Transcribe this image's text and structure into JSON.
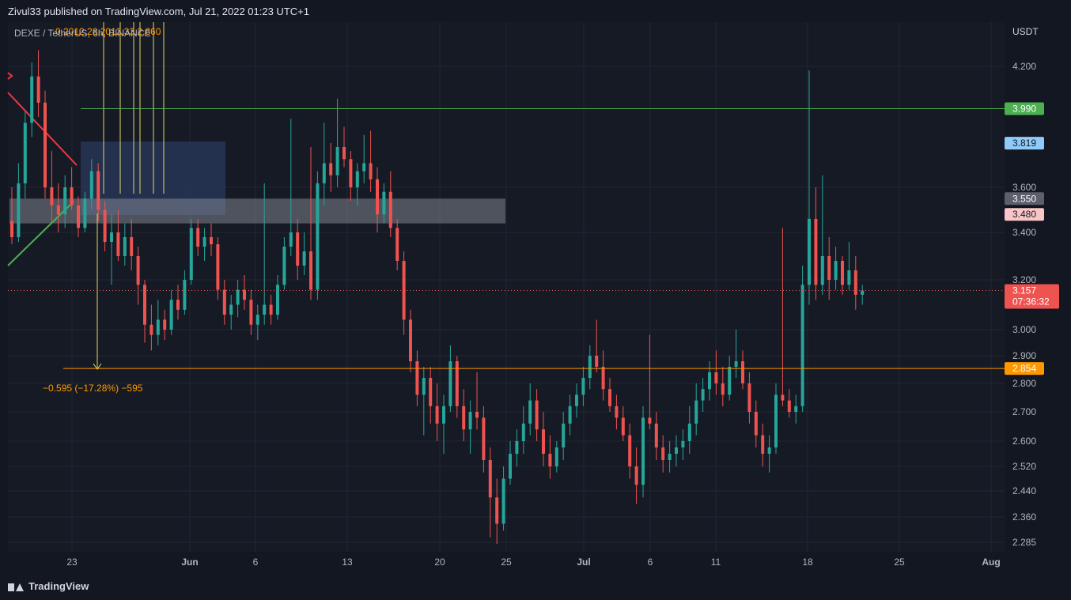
{
  "header": {
    "published": "Zivul33 published on TradingView.com, Jul 21, 2022 01:23 UTC+1"
  },
  "footer": {
    "brand": "TradingView"
  },
  "colors": {
    "up": "#26a69a",
    "down": "#ef5350",
    "grid": "#232733",
    "axis_text": "#b2b5be",
    "bg": "#131722"
  },
  "chart_data": {
    "type": "candlestick",
    "symbol": "DEXE / TetherUS, 6h, BINANCE",
    "unit": "USDT",
    "y_ticks": [
      "4.200",
      "3.600",
      "3.400",
      "3.200",
      "3.000",
      "2.900",
      "2.800",
      "2.700",
      "2.600",
      "2.520",
      "2.440",
      "2.360",
      "2.285"
    ],
    "x_ticks": [
      "23",
      "Jun",
      "6",
      "13",
      "20",
      "25",
      "Jul",
      "6",
      "11",
      "18",
      "25",
      "Aug"
    ],
    "price_levels": [
      {
        "label": "3.990",
        "value": 3.99,
        "color": "#4caf50",
        "line": true
      },
      {
        "label": "3.819",
        "value": 3.819,
        "color": "#90caf9",
        "line": false
      },
      {
        "label": "3.550",
        "value": 3.55,
        "color": "#5d606b",
        "line": false
      },
      {
        "label": "3.480",
        "value": 3.48,
        "color": "#f8c6c6",
        "line": false
      },
      {
        "label": "2.854",
        "value": 2.854,
        "color": "#ff9800",
        "line": true
      }
    ],
    "last_price": {
      "label": "3.157",
      "countdown": "07:36:32",
      "value": 3.157,
      "color": "#ef5350"
    },
    "annotations": {
      "measure_text": "−0.595 (−17.28%) −595",
      "fib_text": "0.2012.28.2012.33.2.660"
    },
    "candles": [
      [
        3.45,
        3.6,
        3.35,
        3.38
      ],
      [
        3.38,
        3.72,
        3.36,
        3.62
      ],
      [
        3.62,
        3.98,
        3.55,
        3.92
      ],
      [
        3.92,
        4.22,
        3.85,
        4.15
      ],
      [
        4.15,
        4.28,
        3.95,
        4.02
      ],
      [
        4.02,
        4.08,
        3.55,
        3.6
      ],
      [
        3.6,
        3.78,
        3.45,
        3.52
      ],
      [
        3.52,
        3.62,
        3.4,
        3.48
      ],
      [
        3.48,
        3.66,
        3.42,
        3.6
      ],
      [
        3.6,
        3.7,
        3.5,
        3.52
      ],
      [
        3.52,
        3.56,
        3.38,
        3.42
      ],
      [
        3.42,
        3.58,
        3.4,
        3.55
      ],
      [
        3.55,
        3.74,
        3.5,
        3.68
      ],
      [
        3.68,
        3.72,
        3.45,
        3.5
      ],
      [
        3.5,
        3.54,
        3.32,
        3.36
      ],
      [
        3.36,
        3.48,
        3.18,
        3.4
      ],
      [
        3.4,
        3.5,
        3.28,
        3.3
      ],
      [
        3.3,
        3.44,
        3.26,
        3.38
      ],
      [
        3.38,
        3.46,
        3.24,
        3.3
      ],
      [
        3.3,
        3.34,
        3.1,
        3.18
      ],
      [
        3.18,
        3.2,
        2.95,
        3.02
      ],
      [
        3.02,
        3.1,
        2.92,
        2.98
      ],
      [
        2.98,
        3.12,
        2.94,
        3.04
      ],
      [
        3.04,
        3.08,
        2.96,
        3.0
      ],
      [
        3.0,
        3.16,
        2.98,
        3.12
      ],
      [
        3.12,
        3.18,
        3.04,
        3.08
      ],
      [
        3.08,
        3.24,
        3.06,
        3.2
      ],
      [
        3.2,
        3.46,
        3.18,
        3.42
      ],
      [
        3.42,
        3.46,
        3.3,
        3.34
      ],
      [
        3.34,
        3.42,
        3.28,
        3.38
      ],
      [
        3.38,
        3.44,
        3.3,
        3.35
      ],
      [
        3.35,
        3.38,
        3.12,
        3.16
      ],
      [
        3.16,
        3.2,
        3.02,
        3.06
      ],
      [
        3.06,
        3.14,
        3.0,
        3.1
      ],
      [
        3.1,
        3.2,
        3.05,
        3.16
      ],
      [
        3.16,
        3.22,
        3.08,
        3.12
      ],
      [
        3.12,
        3.16,
        2.98,
        3.02
      ],
      [
        3.02,
        3.1,
        2.96,
        3.06
      ],
      [
        3.06,
        3.62,
        3.02,
        3.1
      ],
      [
        3.1,
        3.14,
        3.02,
        3.06
      ],
      [
        3.06,
        3.22,
        3.04,
        3.18
      ],
      [
        3.18,
        3.38,
        3.16,
        3.34
      ],
      [
        3.34,
        3.94,
        3.3,
        3.4
      ],
      [
        3.4,
        3.46,
        3.2,
        3.26
      ],
      [
        3.26,
        3.4,
        3.22,
        3.32
      ],
      [
        3.32,
        3.8,
        3.12,
        3.16
      ],
      [
        3.16,
        3.68,
        3.12,
        3.62
      ],
      [
        3.62,
        3.92,
        3.52,
        3.72
      ],
      [
        3.72,
        3.82,
        3.58,
        3.66
      ],
      [
        3.66,
        4.04,
        3.6,
        3.8
      ],
      [
        3.8,
        3.9,
        3.7,
        3.74
      ],
      [
        3.74,
        3.78,
        3.54,
        3.6
      ],
      [
        3.6,
        3.72,
        3.52,
        3.68
      ],
      [
        3.68,
        3.86,
        3.62,
        3.72
      ],
      [
        3.72,
        3.88,
        3.58,
        3.64
      ],
      [
        3.64,
        3.7,
        3.4,
        3.48
      ],
      [
        3.48,
        3.62,
        3.44,
        3.58
      ],
      [
        3.58,
        3.68,
        3.38,
        3.42
      ],
      [
        3.42,
        3.46,
        3.24,
        3.28
      ],
      [
        3.28,
        3.32,
        2.98,
        3.04
      ],
      [
        3.04,
        3.08,
        2.84,
        2.88
      ],
      [
        2.88,
        2.92,
        2.72,
        2.76
      ],
      [
        2.76,
        2.86,
        2.62,
        2.82
      ],
      [
        2.82,
        2.86,
        2.66,
        2.72
      ],
      [
        2.72,
        2.8,
        2.6,
        2.66
      ],
      [
        2.66,
        2.76,
        2.56,
        2.72
      ],
      [
        2.72,
        2.94,
        2.7,
        2.88
      ],
      [
        2.88,
        2.9,
        2.68,
        2.72
      ],
      [
        2.72,
        2.78,
        2.6,
        2.64
      ],
      [
        2.64,
        2.74,
        2.56,
        2.7
      ],
      [
        2.7,
        2.84,
        2.64,
        2.68
      ],
      [
        2.68,
        2.72,
        2.5,
        2.54
      ],
      [
        2.54,
        2.58,
        2.3,
        2.42
      ],
      [
        2.42,
        2.48,
        2.28,
        2.34
      ],
      [
        2.34,
        2.52,
        2.32,
        2.48
      ],
      [
        2.48,
        2.6,
        2.46,
        2.56
      ],
      [
        2.56,
        2.64,
        2.52,
        2.6
      ],
      [
        2.6,
        2.72,
        2.56,
        2.66
      ],
      [
        2.66,
        2.8,
        2.62,
        2.74
      ],
      [
        2.74,
        2.78,
        2.6,
        2.64
      ],
      [
        2.64,
        2.7,
        2.52,
        2.56
      ],
      [
        2.56,
        2.62,
        2.48,
        2.52
      ],
      [
        2.52,
        2.6,
        2.5,
        2.58
      ],
      [
        2.58,
        2.7,
        2.54,
        2.66
      ],
      [
        2.66,
        2.76,
        2.62,
        2.72
      ],
      [
        2.72,
        2.8,
        2.68,
        2.76
      ],
      [
        2.76,
        2.86,
        2.72,
        2.82
      ],
      [
        2.82,
        2.94,
        2.78,
        2.9
      ],
      [
        2.9,
        3.04,
        2.84,
        2.86
      ],
      [
        2.86,
        2.92,
        2.74,
        2.78
      ],
      [
        2.78,
        2.82,
        2.7,
        2.72
      ],
      [
        2.72,
        2.76,
        2.64,
        2.68
      ],
      [
        2.68,
        2.72,
        2.6,
        2.62
      ],
      [
        2.62,
        2.66,
        2.48,
        2.52
      ],
      [
        2.52,
        2.58,
        2.4,
        2.46
      ],
      [
        2.46,
        2.72,
        2.42,
        2.68
      ],
      [
        2.68,
        2.98,
        2.64,
        2.66
      ],
      [
        2.66,
        2.7,
        2.54,
        2.58
      ],
      [
        2.58,
        2.62,
        2.5,
        2.54
      ],
      [
        2.54,
        2.6,
        2.5,
        2.56
      ],
      [
        2.56,
        2.62,
        2.52,
        2.58
      ],
      [
        2.58,
        2.64,
        2.54,
        2.6
      ],
      [
        2.6,
        2.72,
        2.56,
        2.66
      ],
      [
        2.66,
        2.8,
        2.62,
        2.74
      ],
      [
        2.74,
        2.82,
        2.7,
        2.78
      ],
      [
        2.78,
        2.88,
        2.74,
        2.84
      ],
      [
        2.84,
        2.92,
        2.76,
        2.8
      ],
      [
        2.8,
        2.86,
        2.72,
        2.76
      ],
      [
        2.76,
        2.9,
        2.74,
        2.86
      ],
      [
        2.86,
        3.0,
        2.82,
        2.88
      ],
      [
        2.88,
        2.92,
        2.78,
        2.8
      ],
      [
        2.8,
        2.84,
        2.66,
        2.7
      ],
      [
        2.7,
        2.74,
        2.58,
        2.62
      ],
      [
        2.62,
        2.66,
        2.52,
        2.56
      ],
      [
        2.56,
        2.62,
        2.5,
        2.58
      ],
      [
        2.58,
        2.8,
        2.56,
        2.76
      ],
      [
        2.76,
        3.42,
        2.72,
        2.74
      ],
      [
        2.74,
        2.78,
        2.68,
        2.7
      ],
      [
        2.7,
        2.76,
        2.66,
        2.72
      ],
      [
        2.72,
        3.26,
        2.7,
        3.18
      ],
      [
        3.18,
        4.18,
        3.1,
        3.46
      ],
      [
        3.46,
        3.6,
        3.12,
        3.18
      ],
      [
        3.18,
        3.66,
        3.14,
        3.3
      ],
      [
        3.3,
        3.38,
        3.12,
        3.2
      ],
      [
        3.2,
        3.34,
        3.16,
        3.28
      ],
      [
        3.28,
        3.3,
        3.14,
        3.18
      ],
      [
        3.18,
        3.36,
        3.16,
        3.24
      ],
      [
        3.24,
        3.3,
        3.08,
        3.14
      ],
      [
        3.14,
        3.18,
        3.1,
        3.157
      ]
    ]
  }
}
